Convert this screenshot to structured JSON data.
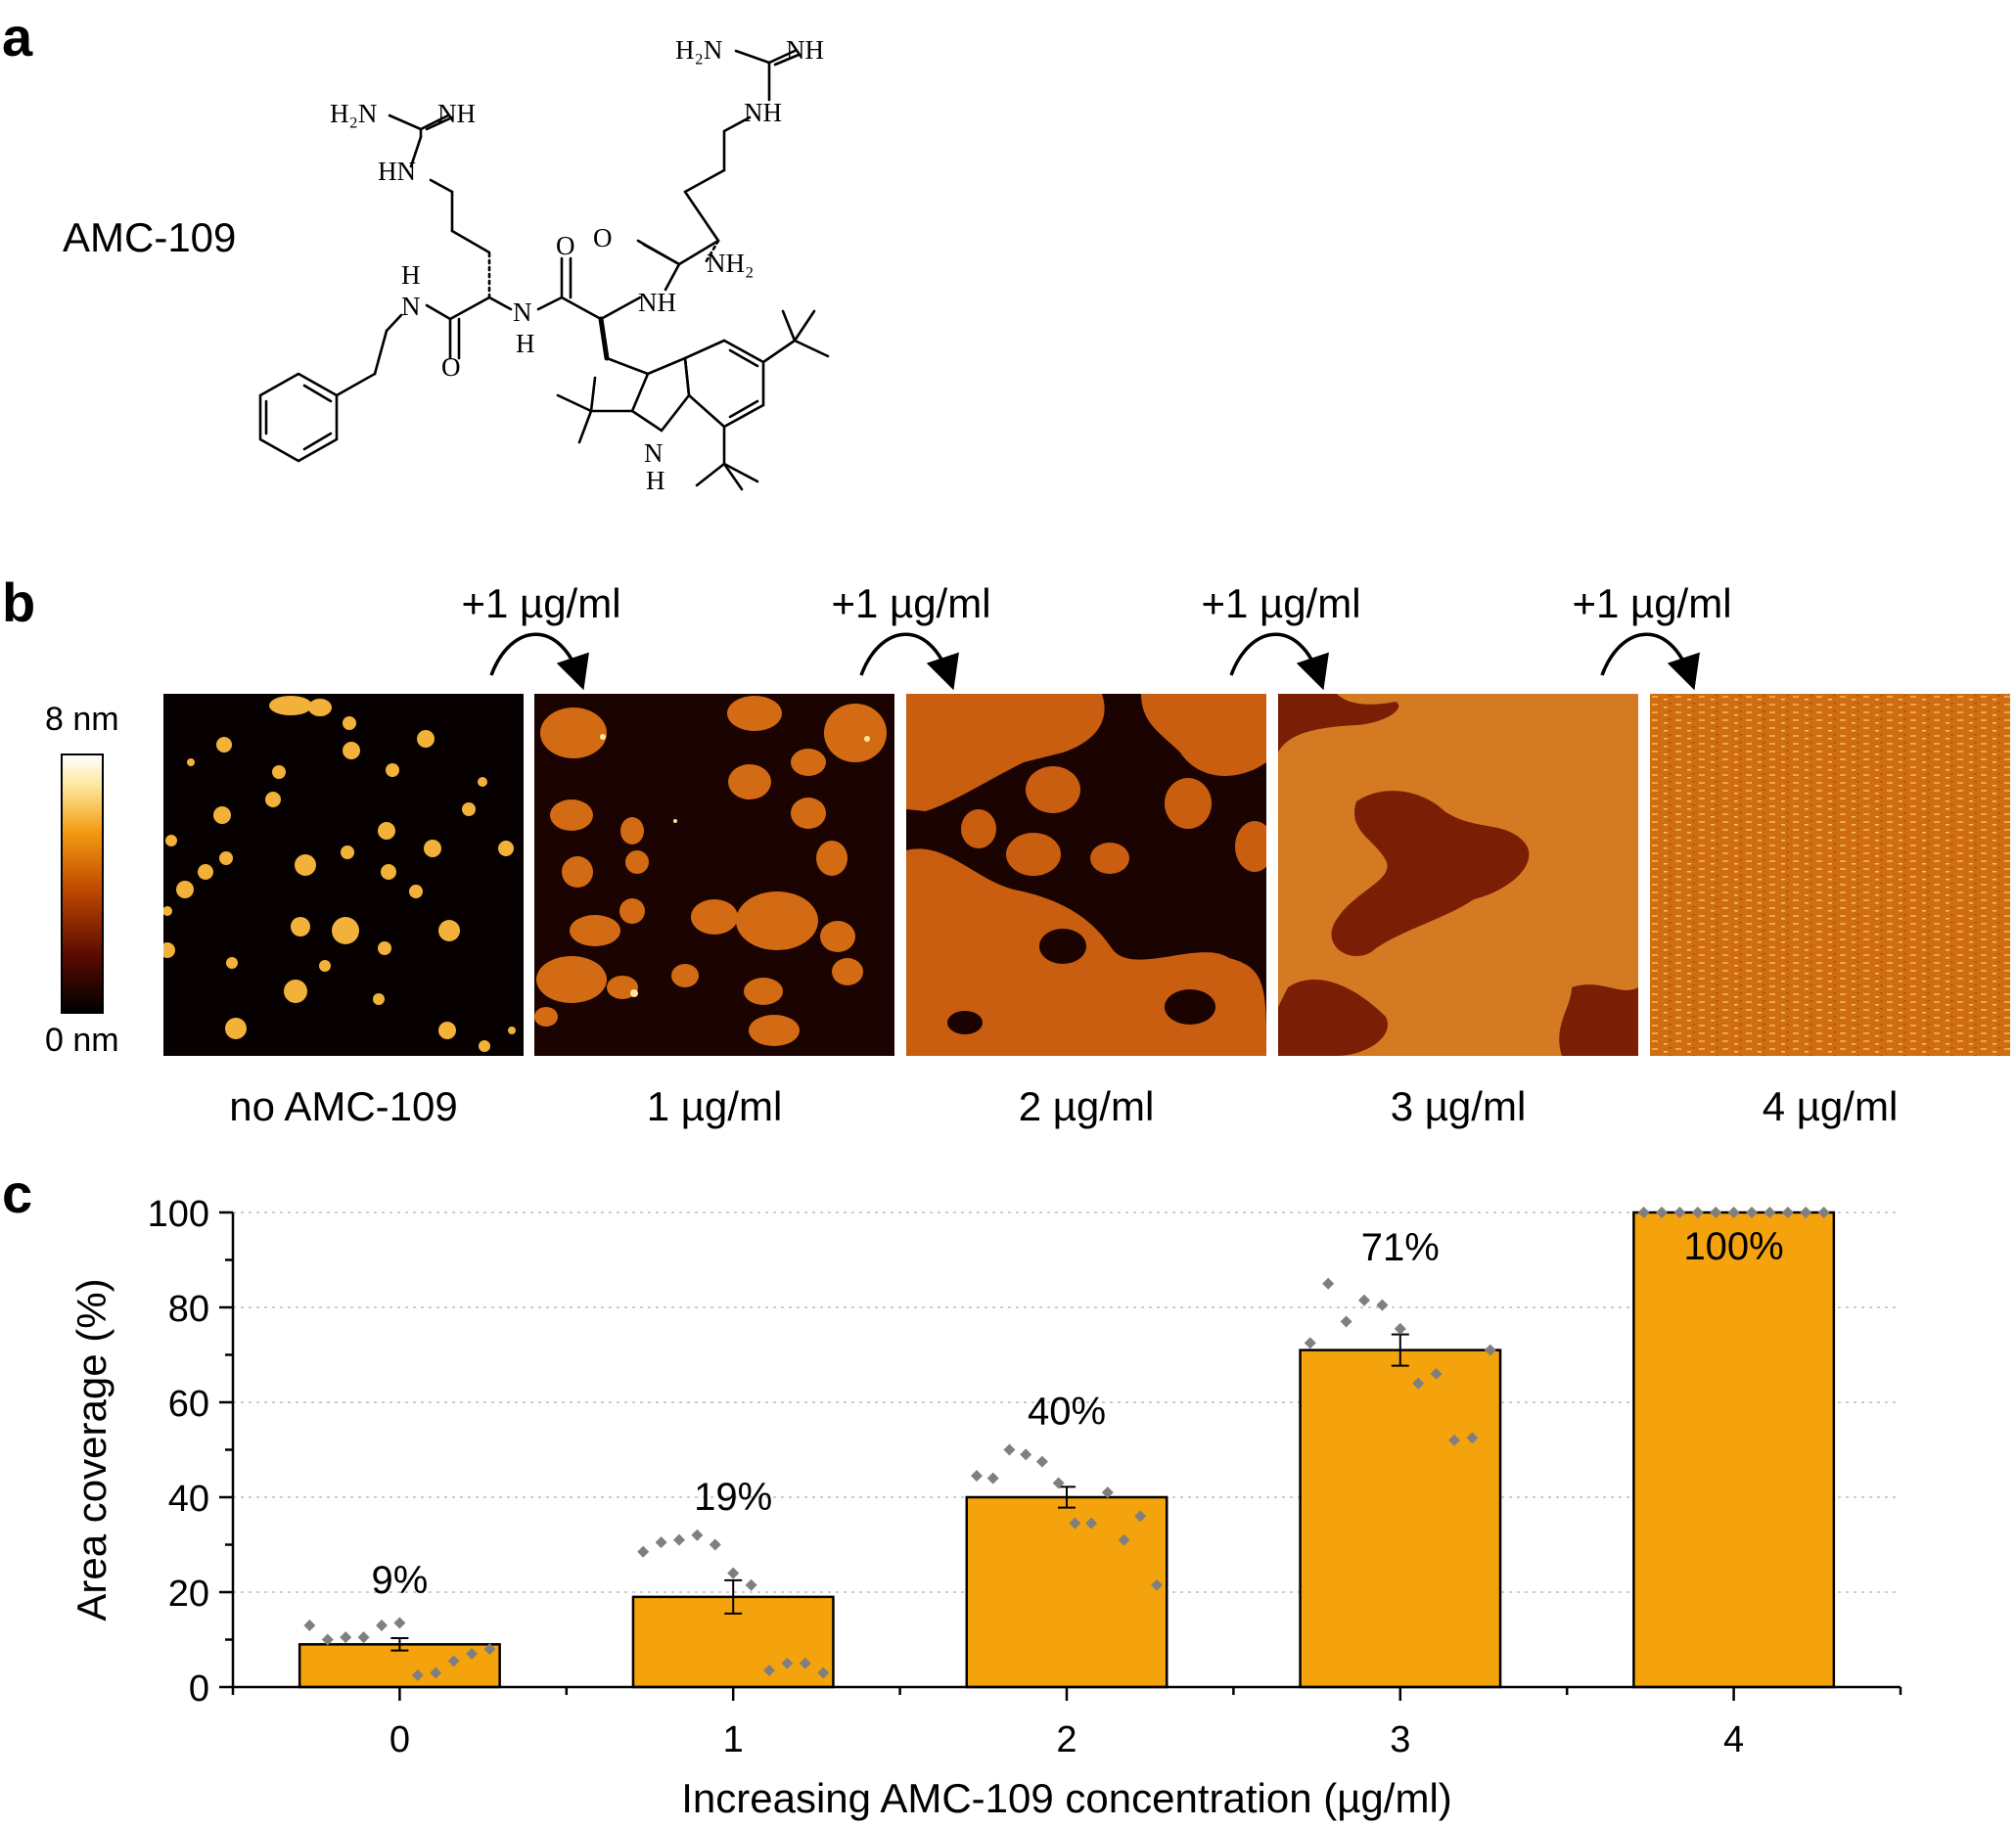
{
  "panel_a": {
    "letter": "a",
    "compound_name": "AMC-109",
    "atom_labels": {
      "h2n": "H₂N",
      "nh": "NH",
      "hn": "HN",
      "o": "O",
      "h": "H",
      "n": "N",
      "nh2": "NH₂"
    }
  },
  "panel_b": {
    "letter": "b",
    "colorbar": {
      "max_label": "8 nm",
      "min_label": "0 nm",
      "colors": [
        "#000000",
        "#5a0a00",
        "#c04a00",
        "#f39a10",
        "#fde79a",
        "#ffffff"
      ]
    },
    "steps": [
      "+1 µg/ml",
      "+1 µg/ml",
      "+1 µg/ml",
      "+1 µg/ml"
    ],
    "images": [
      {
        "caption": "no AMC-109",
        "coverage": 0.09
      },
      {
        "caption": "1 µg/ml",
        "coverage": 0.19
      },
      {
        "caption": "2 µg/ml",
        "coverage": 0.4
      },
      {
        "caption": "3 µg/ml",
        "coverage": 0.71
      },
      {
        "caption": "4 µg/ml",
        "coverage": 1.0
      }
    ]
  },
  "panel_c": {
    "letter": "c",
    "chart_data": {
      "type": "bar",
      "categories": [
        "0",
        "1",
        "2",
        "3",
        "4"
      ],
      "values": [
        9,
        19,
        40,
        71,
        100
      ],
      "errors": [
        1.3,
        3.5,
        2.2,
        3.3,
        0
      ],
      "data_labels": [
        "9%",
        "19%",
        "40%",
        "71%",
        "100%"
      ],
      "points": [
        [
          13,
          10,
          10.5,
          10.5,
          13,
          13.5,
          2.5,
          3,
          5.5,
          7,
          8
        ],
        [
          28.5,
          30.5,
          31,
          32,
          30,
          24,
          21.5,
          3.5,
          5,
          5,
          3
        ],
        [
          44.5,
          44,
          50,
          49,
          47.5,
          43,
          34.5,
          34.5,
          41,
          31,
          36,
          21.5
        ],
        [
          72.5,
          85,
          77,
          81.5,
          80.5,
          75.5,
          64,
          66,
          52,
          52.5,
          71
        ],
        [
          100,
          100,
          100,
          100,
          100,
          100,
          100,
          100,
          100,
          100,
          100
        ]
      ],
      "xlabel": "Increasing AMC-109 concentration (µg/ml)",
      "ylabel": "Area coverage (%)",
      "ylim": [
        0,
        100
      ],
      "yticks": [
        0,
        20,
        40,
        60,
        80,
        100
      ],
      "bar_color": "#f5a30c",
      "point_color": "#7f7f7f",
      "grid": true
    }
  }
}
